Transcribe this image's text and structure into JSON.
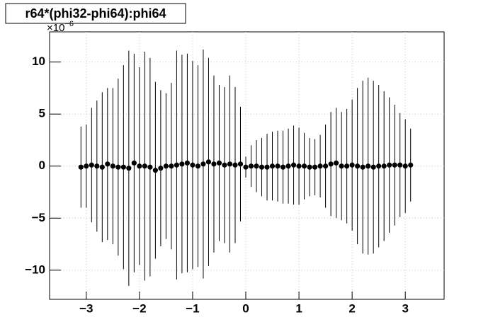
{
  "chart_data": {
    "type": "errorbar",
    "title": "r64*(phi32-phi64):phi64",
    "y_multiplier": {
      "base": "×10",
      "exponent": "−6"
    },
    "xlim": [
      -3.69,
      3.73
    ],
    "ylim": [
      -12.8,
      12.9
    ],
    "xticks": [
      {
        "value": -3,
        "label": "−3"
      },
      {
        "value": -2,
        "label": "−2"
      },
      {
        "value": -1,
        "label": "−1"
      },
      0,
      1,
      2,
      3
    ],
    "yticks": [
      {
        "value": -10,
        "label": "−10"
      },
      {
        "value": -5,
        "label": "−5"
      },
      0,
      5,
      10
    ],
    "grid": true,
    "color": "#000000",
    "x": [
      -3.1,
      -3.0,
      -2.9,
      -2.8,
      -2.7,
      -2.6,
      -2.5,
      -2.4,
      -2.3,
      -2.2,
      -2.1,
      -2.0,
      -1.9,
      -1.8,
      -1.7,
      -1.6,
      -1.5,
      -1.4,
      -1.3,
      -1.2,
      -1.1,
      -1.0,
      -0.9,
      -0.8,
      -0.7,
      -0.6,
      -0.5,
      -0.4,
      -0.3,
      -0.2,
      -0.1,
      0.0,
      0.1,
      0.2,
      0.3,
      0.4,
      0.5,
      0.6,
      0.7,
      0.8,
      0.9,
      1.0,
      1.1,
      1.2,
      1.3,
      1.4,
      1.5,
      1.6,
      1.7,
      1.8,
      1.9,
      2.0,
      2.1,
      2.2,
      2.3,
      2.4,
      2.5,
      2.6,
      2.7,
      2.8,
      2.9,
      3.0,
      3.1
    ],
    "values": [
      -0.1,
      0,
      0.1,
      0,
      -0.1,
      0.2,
      0,
      -0.1,
      -0.1,
      -0.2,
      0.3,
      0,
      0,
      -0.1,
      -0.4,
      -0.2,
      0,
      0,
      0.1,
      0.2,
      0.3,
      0.1,
      0,
      0.2,
      0.4,
      0.2,
      0.3,
      0.1,
      0.2,
      0.1,
      0.2,
      -0.1,
      0,
      0,
      -0.1,
      -0.1,
      0,
      0,
      -0.1,
      0,
      0.1,
      0,
      0,
      -0.1,
      -0.1,
      0,
      0,
      0.2,
      0.3,
      0,
      0,
      0.1,
      0,
      -0.1,
      0,
      -0.1,
      0,
      0,
      0.1,
      0.1,
      0.1,
      0,
      0.1
    ],
    "errors": [
      3.9,
      4,
      5.5,
      6.3,
      7.2,
      7.3,
      7.5,
      8.5,
      9.8,
      11.3,
      10.5,
      9.5,
      11,
      10.5,
      8.5,
      7.5,
      7,
      8,
      11,
      10.5,
      10.5,
      10,
      9.7,
      11,
      10,
      8.5,
      7.5,
      7.5,
      8.5,
      7.5,
      5.5,
      1,
      2,
      2.5,
      2.8,
      3.2,
      3.3,
      3.4,
      3.5,
      3.6,
      3.8,
      3.7,
      3.2,
      2.8,
      2.7,
      3,
      4,
      5,
      5.3,
      5.2,
      5.5,
      6.3,
      7.5,
      8.3,
      8.5,
      8.3,
      7.8,
      7.2,
      6.5,
      5.8,
      5,
      4.5,
      3.5
    ]
  }
}
